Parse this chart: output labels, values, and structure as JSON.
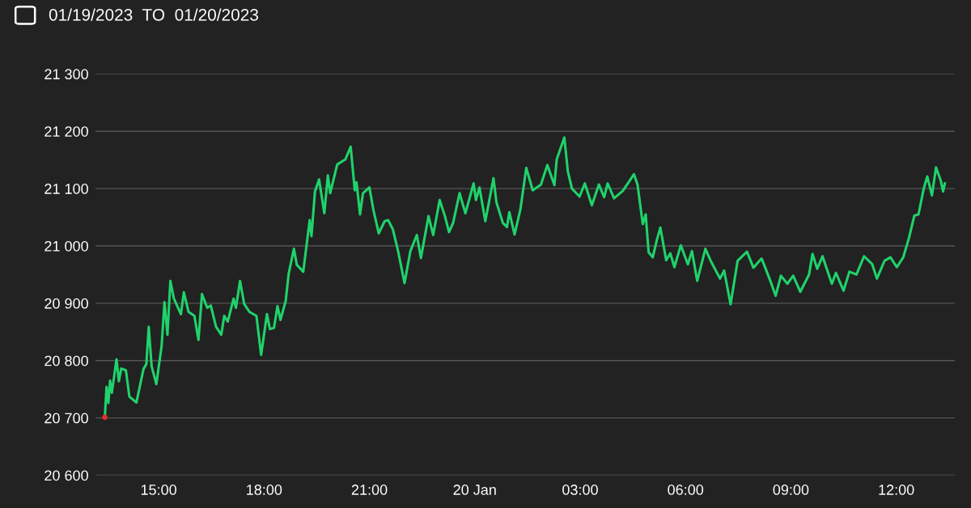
{
  "chart_data": {
    "type": "line",
    "title": "01/19/2023  TO  01/20/2023",
    "x": [
      "2023-01-19T13:28",
      "2023-01-19T13:31",
      "2023-01-19T13:34",
      "2023-01-19T13:37",
      "2023-01-19T13:40",
      "2023-01-19T13:44",
      "2023-01-19T13:48",
      "2023-01-19T13:52",
      "2023-01-19T13:56",
      "2023-01-19T14:04",
      "2023-01-19T14:10",
      "2023-01-19T14:22",
      "2023-01-19T14:34",
      "2023-01-19T14:39",
      "2023-01-19T14:43",
      "2023-01-19T14:48",
      "2023-01-19T14:56",
      "2023-01-19T15:05",
      "2023-01-19T15:10",
      "2023-01-19T15:15",
      "2023-01-19T15:20",
      "2023-01-19T15:26",
      "2023-01-19T15:38",
      "2023-01-19T15:43",
      "2023-01-19T15:51",
      "2023-01-19T16:01",
      "2023-01-19T16:08",
      "2023-01-19T16:14",
      "2023-01-19T16:23",
      "2023-01-19T16:29",
      "2023-01-19T16:38",
      "2023-01-19T16:47",
      "2023-01-19T16:52",
      "2023-01-19T16:58",
      "2023-01-19T17:08",
      "2023-01-19T17:12",
      "2023-01-19T17:19",
      "2023-01-19T17:26",
      "2023-01-19T17:35",
      "2023-01-19T17:47",
      "2023-01-19T17:55",
      "2023-01-19T18:05",
      "2023-01-19T18:10",
      "2023-01-19T18:17",
      "2023-01-19T18:23",
      "2023-01-19T18:28",
      "2023-01-19T18:37",
      "2023-01-19T18:42",
      "2023-01-19T18:51",
      "2023-01-19T18:56",
      "2023-01-19T19:07",
      "2023-01-19T19:18",
      "2023-01-19T19:21",
      "2023-01-19T19:27",
      "2023-01-19T19:34",
      "2023-01-19T19:43",
      "2023-01-19T19:49",
      "2023-01-19T19:53",
      "2023-01-19T20:05",
      "2023-01-19T20:19",
      "2023-01-19T20:28",
      "2023-01-19T20:35",
      "2023-01-19T20:38",
      "2023-01-19T20:44",
      "2023-01-19T20:49",
      "2023-01-19T21:00",
      "2023-01-19T21:07",
      "2023-01-19T21:16",
      "2023-01-19T21:26",
      "2023-01-19T21:32",
      "2023-01-19T21:40",
      "2023-01-19T21:49",
      "2023-01-19T22:00",
      "2023-01-19T22:10",
      "2023-01-19T22:21",
      "2023-01-19T22:28",
      "2023-01-19T22:41",
      "2023-01-19T22:49",
      "2023-01-19T23:00",
      "2023-01-19T23:09",
      "2023-01-19T23:16",
      "2023-01-19T23:23",
      "2023-01-19T23:34",
      "2023-01-19T23:44",
      "2023-01-19T23:58",
      "2023-01-20T00:02",
      "2023-01-20T00:08",
      "2023-01-20T00:18",
      "2023-01-20T00:32",
      "2023-01-20T00:37",
      "2023-01-20T00:48",
      "2023-01-20T00:55",
      "2023-01-20T00:59",
      "2023-01-20T01:08",
      "2023-01-20T01:18",
      "2023-01-20T01:28",
      "2023-01-20T01:39",
      "2023-01-20T01:53",
      "2023-01-20T02:04",
      "2023-01-20T02:16",
      "2023-01-20T02:20",
      "2023-01-20T02:33",
      "2023-01-20T02:39",
      "2023-01-20T02:46",
      "2023-01-20T02:59",
      "2023-01-20T03:08",
      "2023-01-20T03:20",
      "2023-01-20T03:32",
      "2023-01-20T03:41",
      "2023-01-20T03:47",
      "2023-01-20T03:58",
      "2023-01-20T04:13",
      "2023-01-20T04:32",
      "2023-01-20T04:38",
      "2023-01-20T04:47",
      "2023-01-20T04:52",
      "2023-01-20T04:57",
      "2023-01-20T05:04",
      "2023-01-20T05:11",
      "2023-01-20T05:17",
      "2023-01-20T05:27",
      "2023-01-20T05:34",
      "2023-01-20T05:41",
      "2023-01-20T05:52",
      "2023-01-20T06:04",
      "2023-01-20T06:11",
      "2023-01-20T06:20",
      "2023-01-20T06:34",
      "2023-01-20T06:43",
      "2023-01-20T06:59",
      "2023-01-20T07:06",
      "2023-01-20T07:17",
      "2023-01-20T07:29",
      "2023-01-20T07:45",
      "2023-01-20T07:56",
      "2023-01-20T08:10",
      "2023-01-20T08:17",
      "2023-01-20T08:26",
      "2023-01-20T08:34",
      "2023-01-20T08:43",
      "2023-01-20T08:54",
      "2023-01-20T09:04",
      "2023-01-20T09:16",
      "2023-01-20T09:31",
      "2023-01-20T09:37",
      "2023-01-20T09:45",
      "2023-01-20T09:54",
      "2023-01-20T10:10",
      "2023-01-20T10:17",
      "2023-01-20T10:30",
      "2023-01-20T10:40",
      "2023-01-20T10:52",
      "2023-01-20T11:05",
      "2023-01-20T11:19",
      "2023-01-20T11:27",
      "2023-01-20T11:40",
      "2023-01-20T11:50",
      "2023-01-20T12:01",
      "2023-01-20T12:12",
      "2023-01-20T12:22",
      "2023-01-20T12:31",
      "2023-01-20T12:38",
      "2023-01-20T12:47",
      "2023-01-20T12:53",
      "2023-01-20T13:01",
      "2023-01-20T13:08",
      "2023-01-20T13:16",
      "2023-01-20T13:20",
      "2023-01-20T13:23"
    ],
    "series": [
      {
        "color": "#1fd36a",
        "values": [
          20701,
          20754,
          20726,
          20765,
          20744,
          20773,
          20802,
          20764,
          20786,
          20783,
          20737,
          20727,
          20785,
          20794,
          20859,
          20790,
          20759,
          20825,
          20902,
          20845,
          20939,
          20908,
          20881,
          20919,
          20885,
          20878,
          20836,
          20916,
          20892,
          20896,
          20859,
          20845,
          20878,
          20868,
          20908,
          20892,
          20939,
          20899,
          20885,
          20878,
          20810,
          20881,
          20855,
          20857,
          20895,
          20871,
          20904,
          20951,
          20995,
          20967,
          20955,
          21045,
          21017,
          21095,
          21116,
          21057,
          21123,
          21092,
          21142,
          21151,
          21173,
          21097,
          21111,
          21055,
          21092,
          21102,
          21062,
          21022,
          21043,
          21045,
          21029,
          20991,
          20935,
          20991,
          21019,
          20979,
          21052,
          21019,
          21080,
          21052,
          21024,
          21040,
          21092,
          21057,
          21109,
          21080,
          21102,
          21043,
          21118,
          21076,
          21040,
          21033,
          21059,
          21020,
          21064,
          21136,
          21097,
          21107,
          21141,
          21106,
          21151,
          21189,
          21130,
          21100,
          21086,
          21109,
          21071,
          21107,
          21085,
          21109,
          21083,
          21096,
          21125,
          21107,
          21038,
          21055,
          20989,
          20980,
          21010,
          21032,
          20975,
          20987,
          20963,
          21001,
          20968,
          20991,
          20939,
          20995,
          20974,
          20943,
          20957,
          20898,
          20974,
          20990,
          20962,
          20978,
          20960,
          20936,
          20913,
          20948,
          20934,
          20948,
          20920,
          20950,
          20986,
          20960,
          20982,
          20934,
          20953,
          20922,
          20955,
          20950,
          20982,
          20968,
          20943,
          20974,
          20980,
          20963,
          20980,
          21015,
          21053,
          21055,
          21100,
          21121,
          21088,
          21137,
          21114,
          21095,
          21109
        ]
      },
      {
        "type": "scatter",
        "color": "#e0302a",
        "marker": "circle",
        "x": [
          "2023-01-19T13:28"
        ],
        "values": [
          20701
        ]
      }
    ],
    "xlim": [
      "2023-01-19T13:12",
      "2023-01-20T13:40"
    ],
    "xticks": [
      {
        "value": "2023-01-19T15:00",
        "label": "15:00"
      },
      {
        "value": "2023-01-19T18:00",
        "label": "18:00"
      },
      {
        "value": "2023-01-19T21:00",
        "label": "21:00"
      },
      {
        "value": "2023-01-20T00:00",
        "label": "20 Jan"
      },
      {
        "value": "2023-01-20T03:00",
        "label": "03:00"
      },
      {
        "value": "2023-01-20T06:00",
        "label": "06:00"
      },
      {
        "value": "2023-01-20T09:00",
        "label": "09:00"
      },
      {
        "value": "2023-01-20T12:00",
        "label": "12:00"
      }
    ],
    "ylim": [
      20600,
      21300
    ],
    "yticks": [
      {
        "value": 20600,
        "label": "20 600"
      },
      {
        "value": 20700,
        "label": "20 700"
      },
      {
        "value": 20800,
        "label": "20 800"
      },
      {
        "value": 20900,
        "label": "20 900"
      },
      {
        "value": 21000,
        "label": "21 000"
      },
      {
        "value": 21100,
        "label": "21 100"
      },
      {
        "value": 21200,
        "label": "21 200"
      },
      {
        "value": 21300,
        "label": "21 300"
      }
    ],
    "grid": "y",
    "marker": "none",
    "line_style": "solid",
    "legend": false
  }
}
